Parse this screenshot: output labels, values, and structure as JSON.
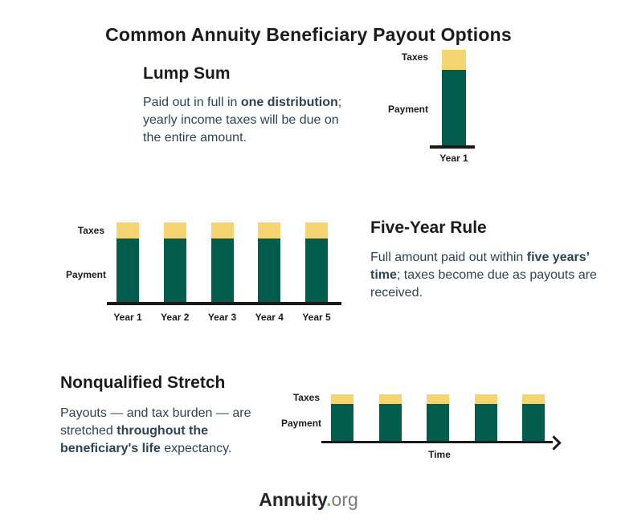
{
  "page": {
    "title": "Common Annuity Beneficiary Payout Options",
    "background": "#ffffff"
  },
  "colors": {
    "payment_green": "#015C4B",
    "taxes_yellow": "#F5D472",
    "heading_dark": "#1B1B1B",
    "body_slate": "#2E4453",
    "axis_black": "#1A1A1A",
    "logo_dark": "#262626",
    "logo_dot_green": "#6CC24A",
    "logo_gray": "#7B7B7B"
  },
  "sections": {
    "lump_sum": {
      "heading": "Lump Sum",
      "body": [
        {
          "text": "Paid out in full in ",
          "bold": false
        },
        {
          "text": "one distribution",
          "bold": true
        },
        {
          "text": "; yearly income taxes will be due on the entire amount.",
          "bold": false
        }
      ]
    },
    "five_year": {
      "heading": "Five-Year Rule",
      "body": [
        {
          "text": "Full amount paid out within ",
          "bold": false
        },
        {
          "text": "five years’ time",
          "bold": true
        },
        {
          "text": "; taxes become due as payouts are received.",
          "bold": false
        }
      ]
    },
    "stretch": {
      "heading": "Nonqualified Stretch",
      "body": [
        {
          "text": "Payouts — and tax burden — are stretched ",
          "bold": false
        },
        {
          "text": "throughout the beneficiary's life",
          "bold": true
        },
        {
          "text": " expectancy.",
          "bold": false
        }
      ]
    }
  },
  "chart_data": [
    {
      "id": "lump_sum",
      "type": "bar",
      "stacked": true,
      "title": "Lump Sum payout",
      "categories": [
        "Year 1"
      ],
      "series": [
        {
          "name": "Payment",
          "values": [
            96
          ],
          "color": "#015C4B"
        },
        {
          "name": "Taxes",
          "values": [
            25
          ],
          "color": "#F5D472"
        }
      ],
      "labels": {
        "taxes": "Taxes",
        "payment": "Payment"
      },
      "value_axis": "none (qualitative, heights in drawn px units)",
      "xlabel": ""
    },
    {
      "id": "five_year",
      "type": "bar",
      "stacked": true,
      "title": "Five-Year Rule payout",
      "categories": [
        "Year 1",
        "Year 2",
        "Year 3",
        "Year 4",
        "Year 5"
      ],
      "series": [
        {
          "name": "Payment",
          "values": [
            81,
            81,
            81,
            81,
            81
          ],
          "color": "#015C4B"
        },
        {
          "name": "Taxes",
          "values": [
            20,
            20,
            20,
            20,
            20
          ],
          "color": "#F5D472"
        }
      ],
      "labels": {
        "taxes": "Taxes",
        "payment": "Payment"
      },
      "value_axis": "none (qualitative, heights in drawn px units)",
      "xlabel": ""
    },
    {
      "id": "stretch",
      "type": "bar",
      "stacked": true,
      "title": "Nonqualified Stretch payout",
      "categories": [
        "",
        "",
        "",
        "",
        ""
      ],
      "series": [
        {
          "name": "Payment",
          "values": [
            47,
            47,
            47,
            47,
            47
          ],
          "color": "#015C4B"
        },
        {
          "name": "Taxes",
          "values": [
            12,
            12,
            12,
            12,
            12
          ],
          "color": "#F5D472"
        }
      ],
      "labels": {
        "taxes": "Taxes",
        "payment": "Payment"
      },
      "value_axis": "none (qualitative, heights in drawn px units)",
      "xlabel": "Time",
      "axis_style": "arrow"
    }
  ],
  "footer": {
    "brand": "Annuity",
    "dot": ".",
    "suffix": "org"
  }
}
